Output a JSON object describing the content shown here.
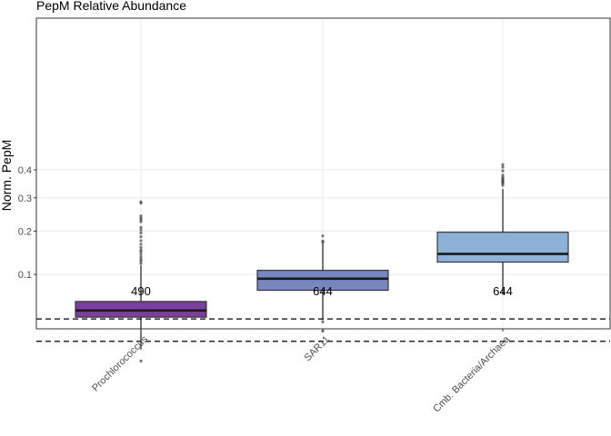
{
  "chart_data": {
    "type": "box",
    "title": "PepM Relative Abundance",
    "xlabel": "",
    "ylabel": "Norm. PepM",
    "y_scale": "sqrt",
    "ylim": [
      0.0,
      0.46
    ],
    "y_ticks": [
      0.1,
      0.2,
      0.3,
      0.4
    ],
    "y_tick_labels": [
      "0.1",
      "0.2",
      "0.3",
      "0.4"
    ],
    "grid": true,
    "categories": [
      "Prochlorococcus",
      "SAR11",
      "Cmb. Bacteria/Archaea"
    ],
    "boxes": [
      {
        "category": "Prochlorococcus",
        "color": "#7B3F9E",
        "whisker_low": 0.008,
        "q1": 0.035,
        "median": 0.043,
        "q3": 0.055,
        "whisker_high": 0.118,
        "outliers": [
          0.122,
          0.127,
          0.131,
          0.136,
          0.142,
          0.148,
          0.152,
          0.158,
          0.166,
          0.175,
          0.185,
          0.195,
          0.203,
          0.21,
          0.226,
          0.232,
          0.237,
          0.243,
          0.283,
          0.287,
          0.003
        ],
        "n": "490"
      },
      {
        "category": "SAR11",
        "color": "#7886BF",
        "whisker_low": 0.032,
        "q1": 0.072,
        "median": 0.092,
        "q3": 0.108,
        "whisker_high": 0.168,
        "outliers": [
          0.171,
          0.174,
          0.187,
          0.03,
          0.021
        ],
        "n": "644"
      },
      {
        "category": "Cmb. Bacteria/Archaea",
        "color": "#8EB1D8",
        "whisker_low": 0.065,
        "q1": 0.125,
        "median": 0.143,
        "q3": 0.197,
        "whisker_high": 0.33,
        "outliers": [
          0.343,
          0.35,
          0.354,
          0.358,
          0.362,
          0.367,
          0.372,
          0.38,
          0.396,
          0.41,
          0.42
        ],
        "n": "644"
      }
    ],
    "reference_lines": [
      0.033,
      0.013
    ]
  }
}
